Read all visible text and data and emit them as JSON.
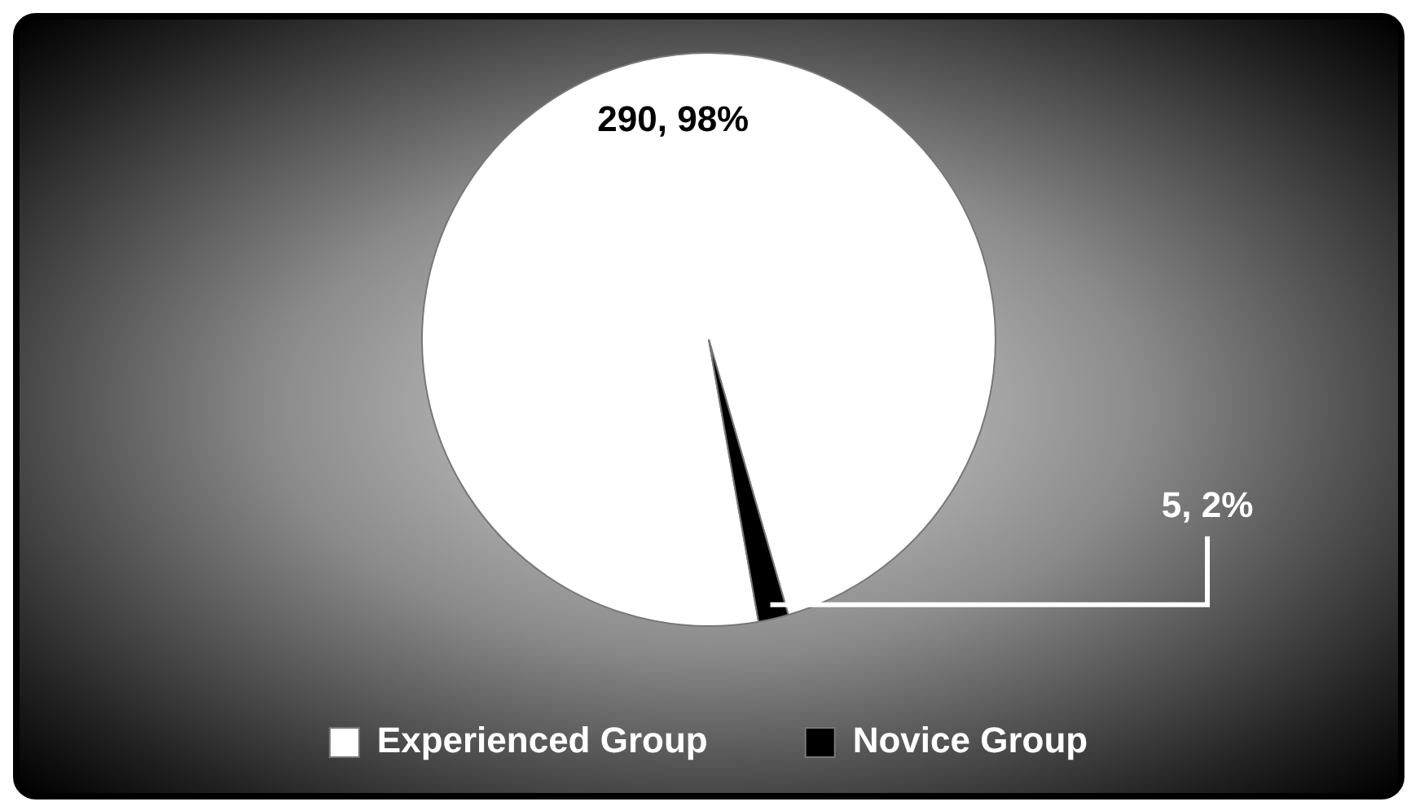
{
  "chart_data": {
    "type": "pie",
    "categories": [
      "Experienced Group",
      "Novice Group"
    ],
    "values": [
      290,
      5
    ],
    "colors": [
      "#ffffff",
      "#000000"
    ],
    "value_labels": [
      "290, 98%",
      "5, 2%"
    ],
    "legend": "bottom"
  }
}
